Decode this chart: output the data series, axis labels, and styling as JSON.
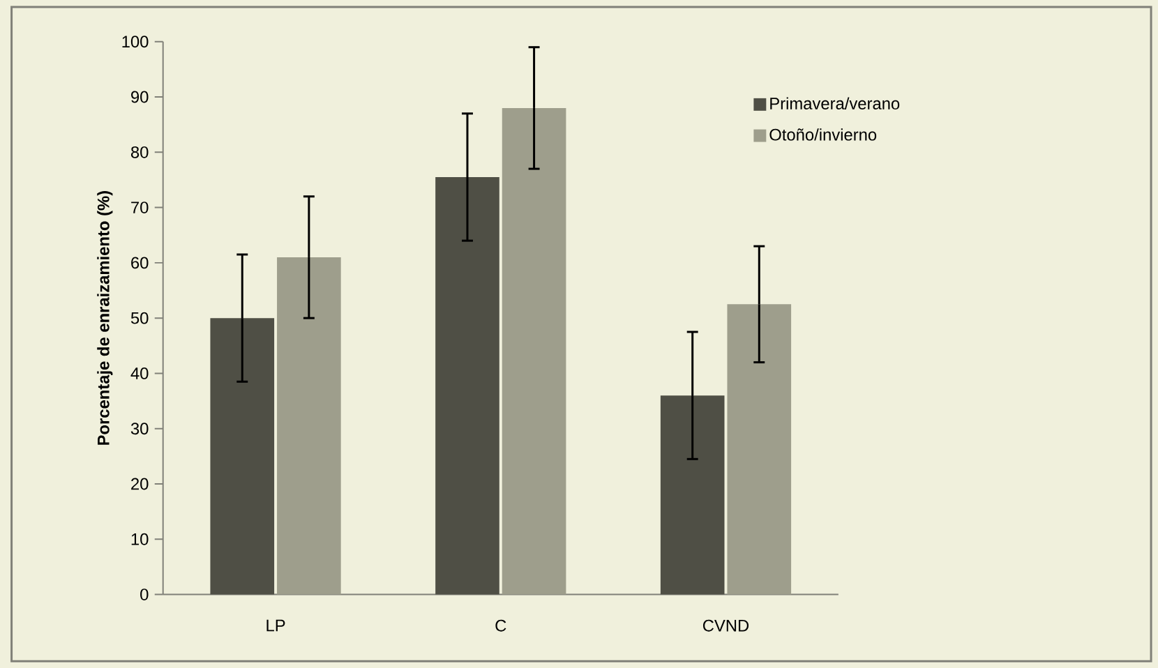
{
  "chart_data": {
    "type": "bar",
    "ylabel": "**Porcentaje de enraizamiento (%)**",
    "categories": [
      "LP",
      "C",
      "CVND"
    ],
    "series": [
      {
        "name": "Primavera/verano",
        "color": "#4f4f45",
        "values": [
          50,
          75.5,
          36
        ],
        "errors": [
          11.5,
          11.5,
          11.5
        ]
      },
      {
        "name": "Otoño/invierno",
        "color": "#9e9e8c",
        "values": [
          61,
          88,
          52.5
        ],
        "errors": [
          11,
          11,
          10.5
        ]
      }
    ],
    "ylim": [
      0,
      100
    ],
    "yticks": [
      0,
      10,
      20,
      30,
      40,
      50,
      60,
      70,
      80,
      90,
      100
    ],
    "legend": "top right",
    "grid": false
  }
}
